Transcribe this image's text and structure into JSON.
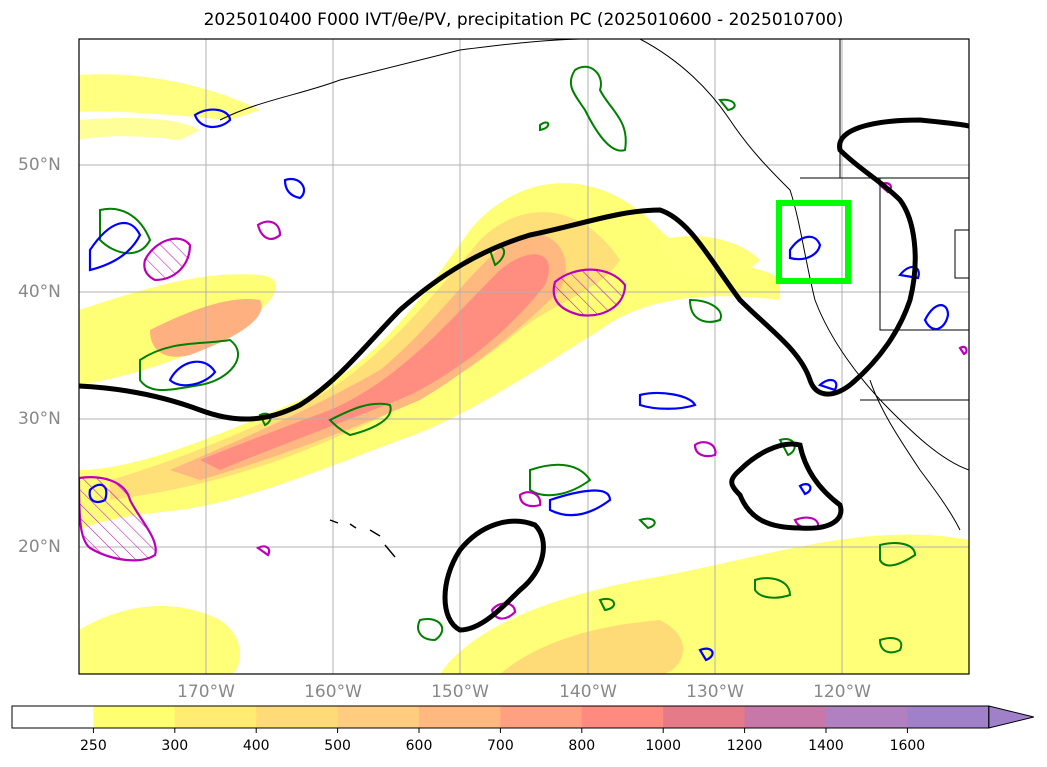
{
  "title": "2025010400 F000 IVT/θe/PV, precipitation PC (2025010600 - 2025010700)",
  "map": {
    "lat_labels": [
      "50°N",
      "40°N",
      "30°N",
      "20°N"
    ],
    "lon_labels": [
      "170°W",
      "160°W",
      "150°W",
      "140°W",
      "130°W",
      "120°W"
    ],
    "box_color": "#00ff00",
    "contour_colors": {
      "ivt_outline": "#000000",
      "theta_e": "#008000",
      "pv_blue": "#0000ff",
      "pv_magenta": "#bb00bb"
    }
  },
  "colorbar": {
    "ticks": [
      "250",
      "300",
      "400",
      "500",
      "600",
      "700",
      "800",
      "1000",
      "1200",
      "1400",
      "1600"
    ],
    "colors": [
      "#ffffff",
      "#ffff70",
      "#ffec70",
      "#ffdb78",
      "#ffcc80",
      "#ffb880",
      "#ffa080",
      "#ff8a80",
      "#e57a88",
      "#c878a8",
      "#b080c0",
      "#a080c8"
    ]
  }
}
